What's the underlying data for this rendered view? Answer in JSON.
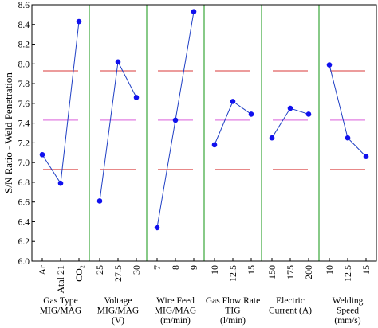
{
  "chart_data": {
    "type": "line",
    "ylabel": "S/N Ratio - Weld Penetration",
    "ylim": [
      6.0,
      8.6
    ],
    "yticks": [
      "6.0",
      "6.2",
      "6.4",
      "6.6",
      "6.8",
      "7.0",
      "7.2",
      "7.4",
      "7.6",
      "7.8",
      "8.0",
      "8.2",
      "8.4",
      "8.6"
    ],
    "reference_lines": {
      "upper_limit": 7.93,
      "mean": 7.43,
      "lower_limit": 6.93,
      "limit_color": "#e06060",
      "mean_color": "#e27ee2"
    },
    "series_color": "#1f3fc4",
    "marker_color": "#1010ee",
    "separator_color": "#3aa63a",
    "groups": [
      {
        "label_lines": [
          "Gas Type",
          "MIG/MAG"
        ],
        "categories": [
          "Ar",
          "Atal 21",
          "CO₂"
        ],
        "values": [
          7.08,
          6.79,
          8.43
        ]
      },
      {
        "label_lines": [
          "Voltage",
          "MIG/MAG",
          "(V)"
        ],
        "categories": [
          "25",
          "27.5",
          "30"
        ],
        "values": [
          6.61,
          8.02,
          7.66
        ]
      },
      {
        "label_lines": [
          "Wire Feed",
          "MIG/MAG",
          "(m/min)"
        ],
        "categories": [
          "7",
          "8",
          "9"
        ],
        "values": [
          6.34,
          7.43,
          8.53
        ]
      },
      {
        "label_lines": [
          "Gas Flow Rate",
          "TIG",
          "(l/min)"
        ],
        "categories": [
          "10",
          "12.5",
          "15"
        ],
        "values": [
          7.18,
          7.62,
          7.49
        ]
      },
      {
        "label_lines": [
          "Electric",
          "Current (A)"
        ],
        "categories": [
          "150",
          "175",
          "200"
        ],
        "values": [
          7.25,
          7.55,
          7.49
        ]
      },
      {
        "label_lines": [
          "Welding",
          "Speed",
          "(mm/s)"
        ],
        "categories": [
          "10",
          "12.5",
          "15"
        ],
        "values": [
          7.99,
          7.25,
          7.06
        ]
      }
    ]
  }
}
